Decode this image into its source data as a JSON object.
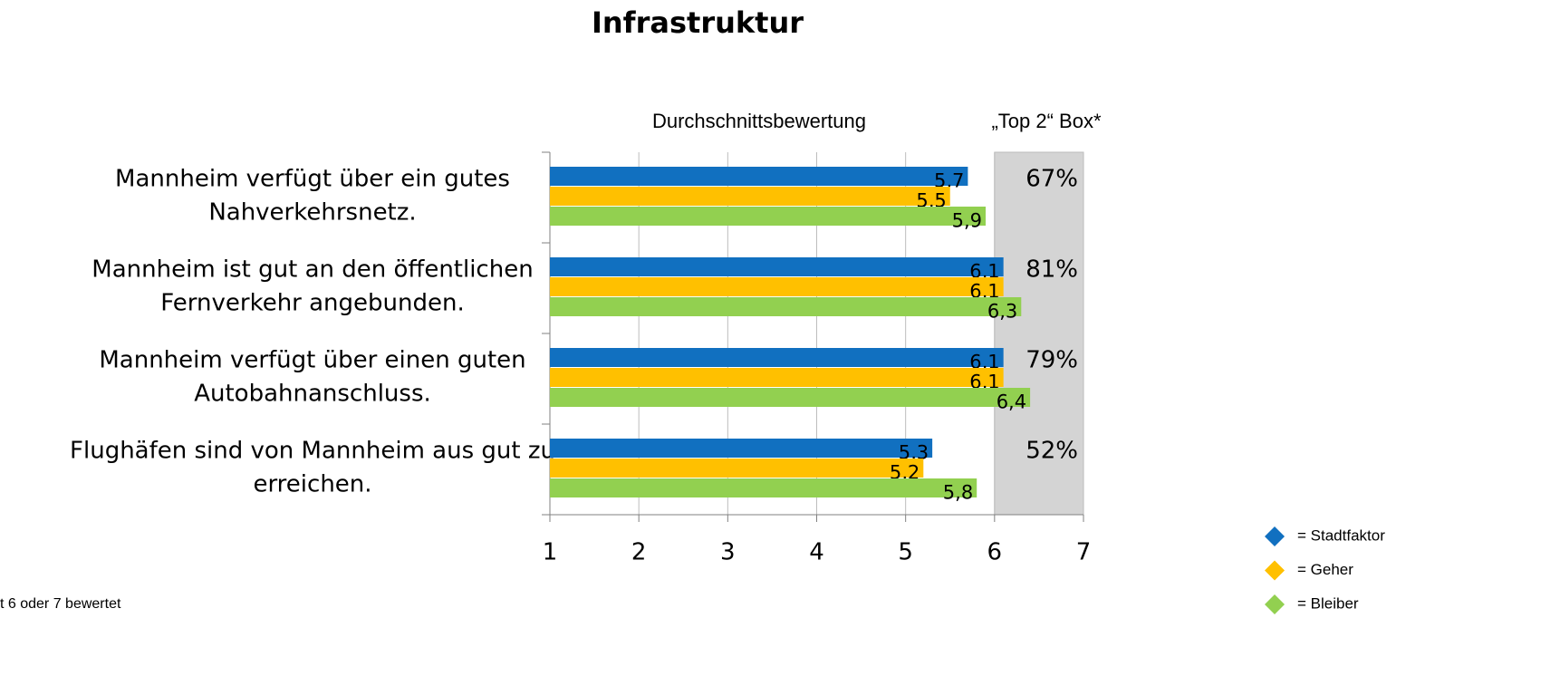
{
  "chart_data": {
    "type": "bar",
    "orientation": "horizontal",
    "title": "Infrastruktur",
    "x_label": "Durchschnittsbewertung",
    "categories": [
      [
        "Mannheim verfügt über ein gutes",
        "Nahverkehrsnetz."
      ],
      [
        "Mannheim ist gut an den öffentlichen",
        "Fernverkehr angebunden."
      ],
      [
        "Mannheim verfügt über einen guten",
        "Autobahnanschluss."
      ],
      [
        "Flughäfen sind von Mannheim aus gut zu",
        "erreichen."
      ]
    ],
    "series": [
      {
        "name": "= Stadtfaktor",
        "color": "#1170c0",
        "label_color": "#ffffff",
        "values": [
          5.7,
          6.1,
          6.1,
          5.3
        ],
        "value_labels": [
          "5,7",
          "6,1",
          "6,1",
          "5,3"
        ]
      },
      {
        "name": "= Geher",
        "color": "#ffc000",
        "label_color": "#000000",
        "values": [
          5.5,
          6.1,
          6.1,
          5.2
        ],
        "value_labels": [
          "5,5",
          "6,1",
          "6,1",
          "5,2"
        ]
      },
      {
        "name": "= Bleiber",
        "color": "#92d050",
        "label_color": "#000000",
        "values": [
          5.9,
          6.3,
          6.4,
          5.8
        ],
        "value_labels": [
          "5,9",
          "6,3",
          "6,4",
          "5,8"
        ]
      }
    ],
    "xlim": [
      1,
      7
    ],
    "xticks": [
      1,
      2,
      3,
      4,
      5,
      6,
      7
    ],
    "grid": true,
    "top2": {
      "title": "„Top 2“ Box*",
      "from": 6,
      "values": [
        67,
        81,
        79,
        52
      ],
      "value_labels": [
        "67%",
        "81%",
        "79%",
        "52%"
      ]
    },
    "footnote": "t 6 oder 7 bewertet",
    "legend": "bottom-right"
  }
}
